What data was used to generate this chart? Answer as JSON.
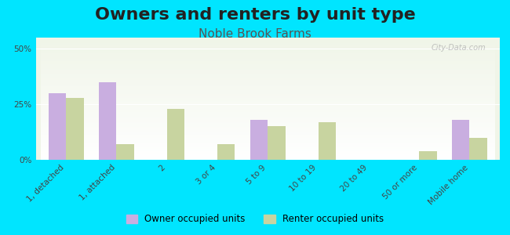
{
  "title": "Owners and renters by unit type",
  "subtitle": "Noble Brook Farms",
  "categories": [
    "1, detached",
    "1, attached",
    "2",
    "3 or 4",
    "5 to 9",
    "10 to 19",
    "20 to 49",
    "50 or more",
    "Mobile home"
  ],
  "owner_values": [
    30,
    35,
    0,
    0,
    18,
    0,
    0,
    0,
    18
  ],
  "renter_values": [
    28,
    7,
    23,
    7,
    15,
    17,
    0,
    4,
    10
  ],
  "owner_color": "#c9aee0",
  "renter_color": "#c8d4a0",
  "background_color": "#00e5ff",
  "plot_bg_top": "#f0f5e8",
  "plot_bg_bottom": "#ffffff",
  "ylabel_ticks": [
    "0%",
    "25%",
    "50%"
  ],
  "ytick_vals": [
    0,
    25,
    50
  ],
  "ylim": [
    0,
    55
  ],
  "bar_width": 0.35,
  "legend_owner": "Owner occupied units",
  "legend_renter": "Renter occupied units",
  "title_fontsize": 16,
  "subtitle_fontsize": 11,
  "tick_fontsize": 7.5,
  "watermark": "City-Data.com"
}
